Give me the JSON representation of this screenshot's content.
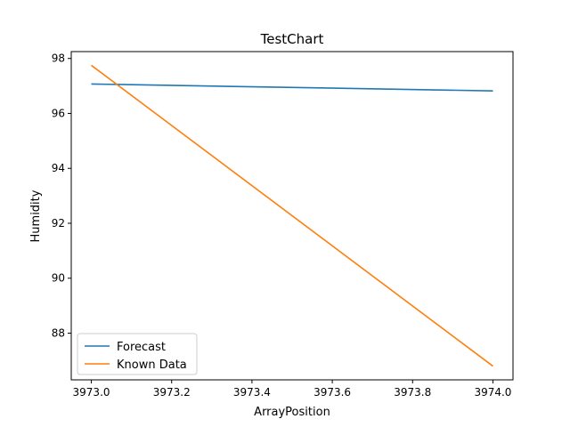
{
  "chart_data": {
    "type": "line",
    "title": "TestChart",
    "xlabel": "ArrayPosition",
    "ylabel": "Humidity",
    "xlim": [
      3972.95,
      3974.05
    ],
    "ylim": [
      86.3,
      98.25
    ],
    "x_ticks": [
      "3973.0",
      "3973.2",
      "3973.4",
      "3973.6",
      "3973.8",
      "3974.0"
    ],
    "y_ticks": [
      "88",
      "90",
      "92",
      "94",
      "96",
      "98"
    ],
    "grid": false,
    "legend_position": "lower-left",
    "series": [
      {
        "name": "Forecast",
        "color": "#1f77b4",
        "x": [
          3973.0,
          3974.0
        ],
        "y": [
          97.07,
          96.82
        ]
      },
      {
        "name": "Known Data",
        "color": "#ff7f0e",
        "x": [
          3973.0,
          3974.0
        ],
        "y": [
          97.75,
          86.8
        ]
      }
    ]
  }
}
